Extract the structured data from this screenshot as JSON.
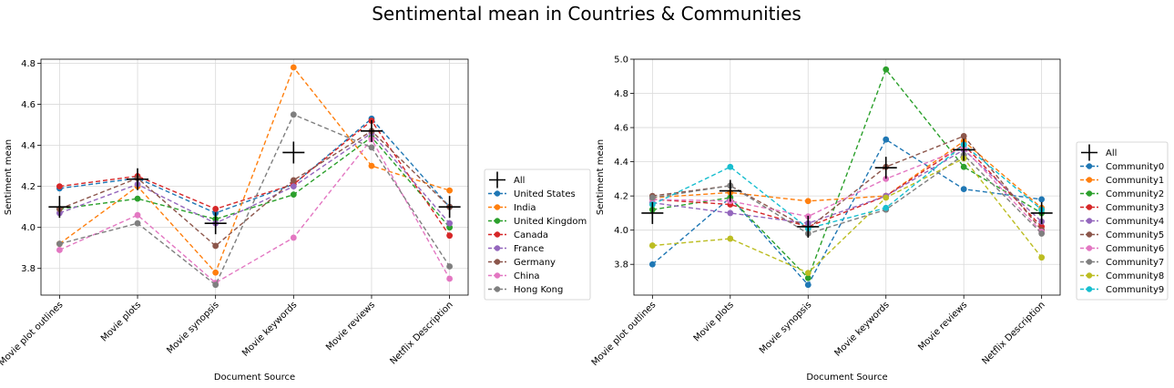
{
  "figure_title": "Sentimental mean in Countries & Communities",
  "colors": {
    "tab10": [
      "#1f77b4",
      "#ff7f0e",
      "#2ca02c",
      "#d62728",
      "#9467bd",
      "#8c564b",
      "#e377c2",
      "#7f7f7f",
      "#bcbd22",
      "#17becf"
    ],
    "all_marker": "#000000",
    "grid": "#d9d9d9"
  },
  "chart_data": [
    {
      "type": "line",
      "title": "",
      "xlabel": "Document Source",
      "ylabel": "Sentiment mean",
      "categories": [
        "Movie plot outlines",
        "Movie plots",
        "Movie synopsis",
        "Movie keywords",
        "Movie reviews",
        "Netflix Description"
      ],
      "ylim": [
        3.67,
        4.82
      ],
      "yticks": [
        3.8,
        4.0,
        4.2,
        4.4,
        4.6,
        4.8
      ],
      "ytick_labels": [
        "3.8",
        "4.0",
        "4.2",
        "4.4",
        "4.6",
        "4.8"
      ],
      "grid": true,
      "legend_position": "outside right",
      "all": {
        "name": "All",
        "values": [
          4.1,
          4.235,
          4.02,
          4.365,
          4.47,
          4.1
        ]
      },
      "series": [
        {
          "name": "United States",
          "values": [
            4.19,
            4.24,
            4.07,
            4.21,
            4.53,
            4.1
          ]
        },
        {
          "name": "India",
          "values": [
            3.92,
            4.2,
            3.78,
            4.78,
            4.3,
            4.18
          ]
        },
        {
          "name": "United Kingdom",
          "values": [
            4.09,
            4.14,
            4.04,
            4.16,
            4.44,
            4.0
          ]
        },
        {
          "name": "Canada",
          "values": [
            4.2,
            4.25,
            4.09,
            4.21,
            4.52,
            3.96
          ]
        },
        {
          "name": "France",
          "values": [
            4.07,
            4.21,
            4.02,
            4.2,
            4.46,
            4.02
          ]
        },
        {
          "name": "Germany",
          "values": [
            4.09,
            4.24,
            3.91,
            4.23,
            4.47,
            4.1
          ]
        },
        {
          "name": "China",
          "values": [
            3.89,
            4.06,
            3.73,
            3.95,
            4.43,
            3.75
          ]
        },
        {
          "name": "Hong Kong",
          "values": [
            3.92,
            4.02,
            3.72,
            4.55,
            4.39,
            3.81
          ]
        }
      ]
    },
    {
      "type": "line",
      "title": "",
      "xlabel": "Document Source",
      "ylabel": "Sentiment mean",
      "categories": [
        "Movie plot outlines",
        "Movie plots",
        "Movie synopsis",
        "Movie keywords",
        "Movie reviews",
        "Netflix Description"
      ],
      "ylim": [
        3.62,
        5.0
      ],
      "yticks": [
        3.8,
        4.0,
        4.2,
        4.4,
        4.6,
        4.8,
        5.0
      ],
      "ytick_labels": [
        "3.8",
        "4.0",
        "4.2",
        "4.4",
        "4.6",
        "4.8",
        "5.0"
      ],
      "grid": true,
      "legend_position": "outside right",
      "all": {
        "name": "All",
        "values": [
          4.1,
          4.23,
          4.02,
          4.365,
          4.47,
          4.1
        ]
      },
      "series": [
        {
          "name": "Community0",
          "values": [
            3.8,
            4.19,
            3.68,
            4.53,
            4.24,
            4.18
          ]
        },
        {
          "name": "Community1",
          "values": [
            4.19,
            4.22,
            4.17,
            4.2,
            4.52,
            4.13
          ]
        },
        {
          "name": "Community2",
          "values": [
            4.12,
            4.19,
            3.72,
            4.94,
            4.37,
            4.1
          ]
        },
        {
          "name": "Community3",
          "values": [
            4.18,
            4.15,
            4.02,
            4.2,
            4.5,
            4.02
          ]
        },
        {
          "name": "Community4",
          "values": [
            4.16,
            4.1,
            4.04,
            4.2,
            4.47,
            4.05
          ]
        },
        {
          "name": "Community5",
          "values": [
            4.2,
            4.26,
            4.01,
            4.37,
            4.55,
            4.0
          ]
        },
        {
          "name": "Community6",
          "values": [
            4.18,
            4.17,
            4.08,
            4.3,
            4.48,
            3.99
          ]
        },
        {
          "name": "Community7",
          "values": [
            4.19,
            4.26,
            3.98,
            4.12,
            4.44,
            3.98
          ]
        },
        {
          "name": "Community8",
          "values": [
            3.91,
            3.95,
            3.75,
            4.19,
            4.42,
            3.84
          ]
        },
        {
          "name": "Community9",
          "values": [
            4.15,
            4.37,
            4.01,
            4.13,
            4.5,
            4.12
          ]
        }
      ]
    }
  ]
}
